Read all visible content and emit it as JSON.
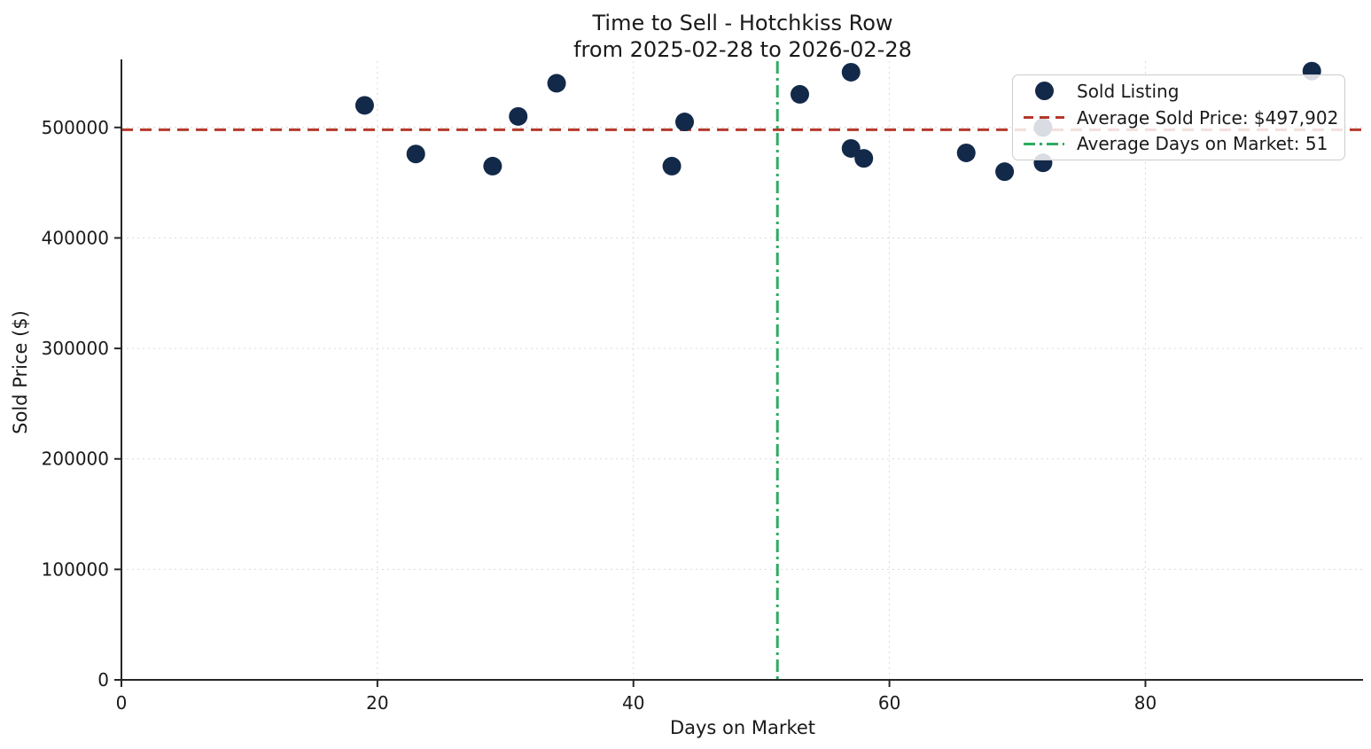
{
  "chart_data": {
    "type": "scatter",
    "title": "Time to Sell - Hotchkiss Row\nfrom 2025-02-28 to 2026-02-28",
    "title_lines": [
      "Time to Sell - Hotchkiss Row",
      "from 2025-02-28 to 2026-02-28"
    ],
    "xlabel": "Days on Market",
    "ylabel": "Sold Price ($)",
    "xlim": [
      0,
      97
    ],
    "ylim": [
      0,
      560000
    ],
    "x_ticks": [
      0,
      20,
      40,
      60,
      80
    ],
    "y_ticks": [
      0,
      100000,
      200000,
      300000,
      400000,
      500000
    ],
    "grid": true,
    "legend_position": "upper right",
    "series": [
      {
        "name": "Sold Listing",
        "type": "scatter",
        "color": "#13294a",
        "points": [
          [
            19,
            520000
          ],
          [
            23,
            476000
          ],
          [
            29,
            465000
          ],
          [
            31,
            510000
          ],
          [
            34,
            540000
          ],
          [
            43,
            465000
          ],
          [
            44,
            505000
          ],
          [
            53,
            530000
          ],
          [
            57,
            550000
          ],
          [
            57,
            481000
          ],
          [
            58,
            472000
          ],
          [
            66,
            477000
          ],
          [
            69,
            460000
          ],
          [
            72,
            500000
          ],
          [
            72,
            468000
          ],
          [
            93,
            551000
          ]
        ]
      }
    ],
    "reference_lines": [
      {
        "name": "average-sold-price",
        "orientation": "horizontal",
        "value": 497902,
        "label": "Average Sold Price: $497,902",
        "color": "#b5392c",
        "style": "dashed"
      },
      {
        "name": "average-days-on-market",
        "orientation": "vertical",
        "value": 51.25,
        "label": "Average Days on Market: 51",
        "color": "#2eab63",
        "style": "dashdot"
      }
    ],
    "colors": {
      "marker": "#13294a",
      "avg_price_line": "#b5392c",
      "avg_days_line": "#2eab63",
      "grid": "#d9d9d9",
      "spine": "#262626",
      "text": "#1a1a1a"
    }
  }
}
